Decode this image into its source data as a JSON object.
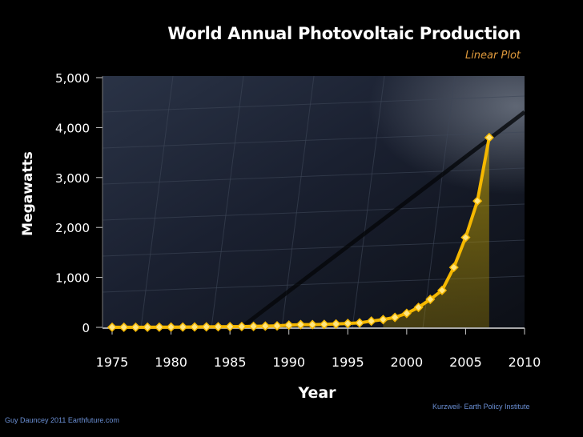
{
  "chart_data": {
    "type": "line",
    "title": "World Annual Photovoltaic Production",
    "subtitle": "Linear Plot",
    "xlabel": "Year",
    "ylabel": "Megawatts",
    "xlim": [
      1975,
      2010
    ],
    "ylim": [
      0,
      5000
    ],
    "x_ticks": [
      "1975",
      "1980",
      "1985",
      "1990",
      "1995",
      "2000",
      "2005",
      "2010"
    ],
    "y_ticks": [
      "0",
      "1,000",
      "2,000",
      "3,000",
      "4,000",
      "5,000"
    ],
    "series": [
      {
        "name": "Megawatts",
        "color": "#f5b800",
        "x": [
          1975,
          1976,
          1977,
          1978,
          1979,
          1980,
          1981,
          1982,
          1983,
          1984,
          1985,
          1986,
          1987,
          1988,
          1989,
          1990,
          1991,
          1992,
          1993,
          1994,
          1995,
          1996,
          1997,
          1998,
          1999,
          2000,
          2001,
          2002,
          2003,
          2004,
          2005,
          2006,
          2007
        ],
        "y": [
          2,
          2,
          2,
          3,
          4,
          5,
          6,
          8,
          10,
          12,
          14,
          16,
          20,
          25,
          30,
          45,
          55,
          55,
          60,
          68,
          78,
          90,
          125,
          155,
          200,
          280,
          400,
          560,
          740,
          1200,
          1800,
          2530,
          3800
        ]
      }
    ]
  },
  "footer": {
    "source": "Kurzweil- Earth Policy Institute",
    "credit": "Guy Dauncey 2011 Earthfuture.com"
  }
}
